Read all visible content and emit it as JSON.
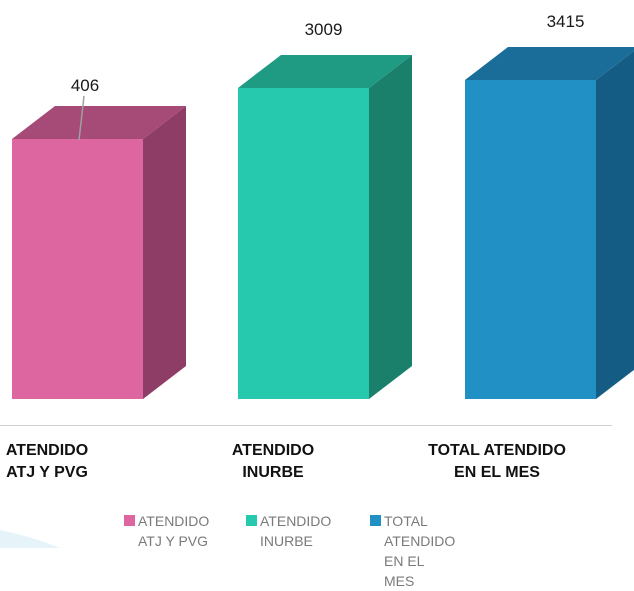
{
  "chart_data": {
    "type": "bar",
    "categories": [
      "ATENDIDO\nATJ Y PVG",
      "ATENDIDO\nINURBE",
      "TOTAL ATENDIDO\nEN EL MES"
    ],
    "values": [
      406,
      3009,
      3415
    ],
    "value_labels": [
      "406",
      "3009",
      "3415"
    ],
    "colors": {
      "front": [
        "#de66a0",
        "#26c9ad",
        "#2190c4"
      ],
      "side": [
        "#8e3e66",
        "#1a7f6b",
        "#155c85"
      ],
      "top": [
        "#a64a78",
        "#1f9b84",
        "#1a6d99"
      ]
    },
    "legend": {
      "placement": "bottom",
      "items": [
        {
          "label": "ATENDIDO\nATJ Y PVG",
          "color": "#de66a0"
        },
        {
          "label": "ATENDIDO\nINURBE",
          "color": "#26c9ad"
        },
        {
          "label": "TOTAL ATENDIDO\nEN EL MES",
          "color": "#2190c4"
        }
      ]
    },
    "title": "",
    "xlabel": "",
    "ylabel": "",
    "grid": false,
    "style": "3d-column"
  }
}
